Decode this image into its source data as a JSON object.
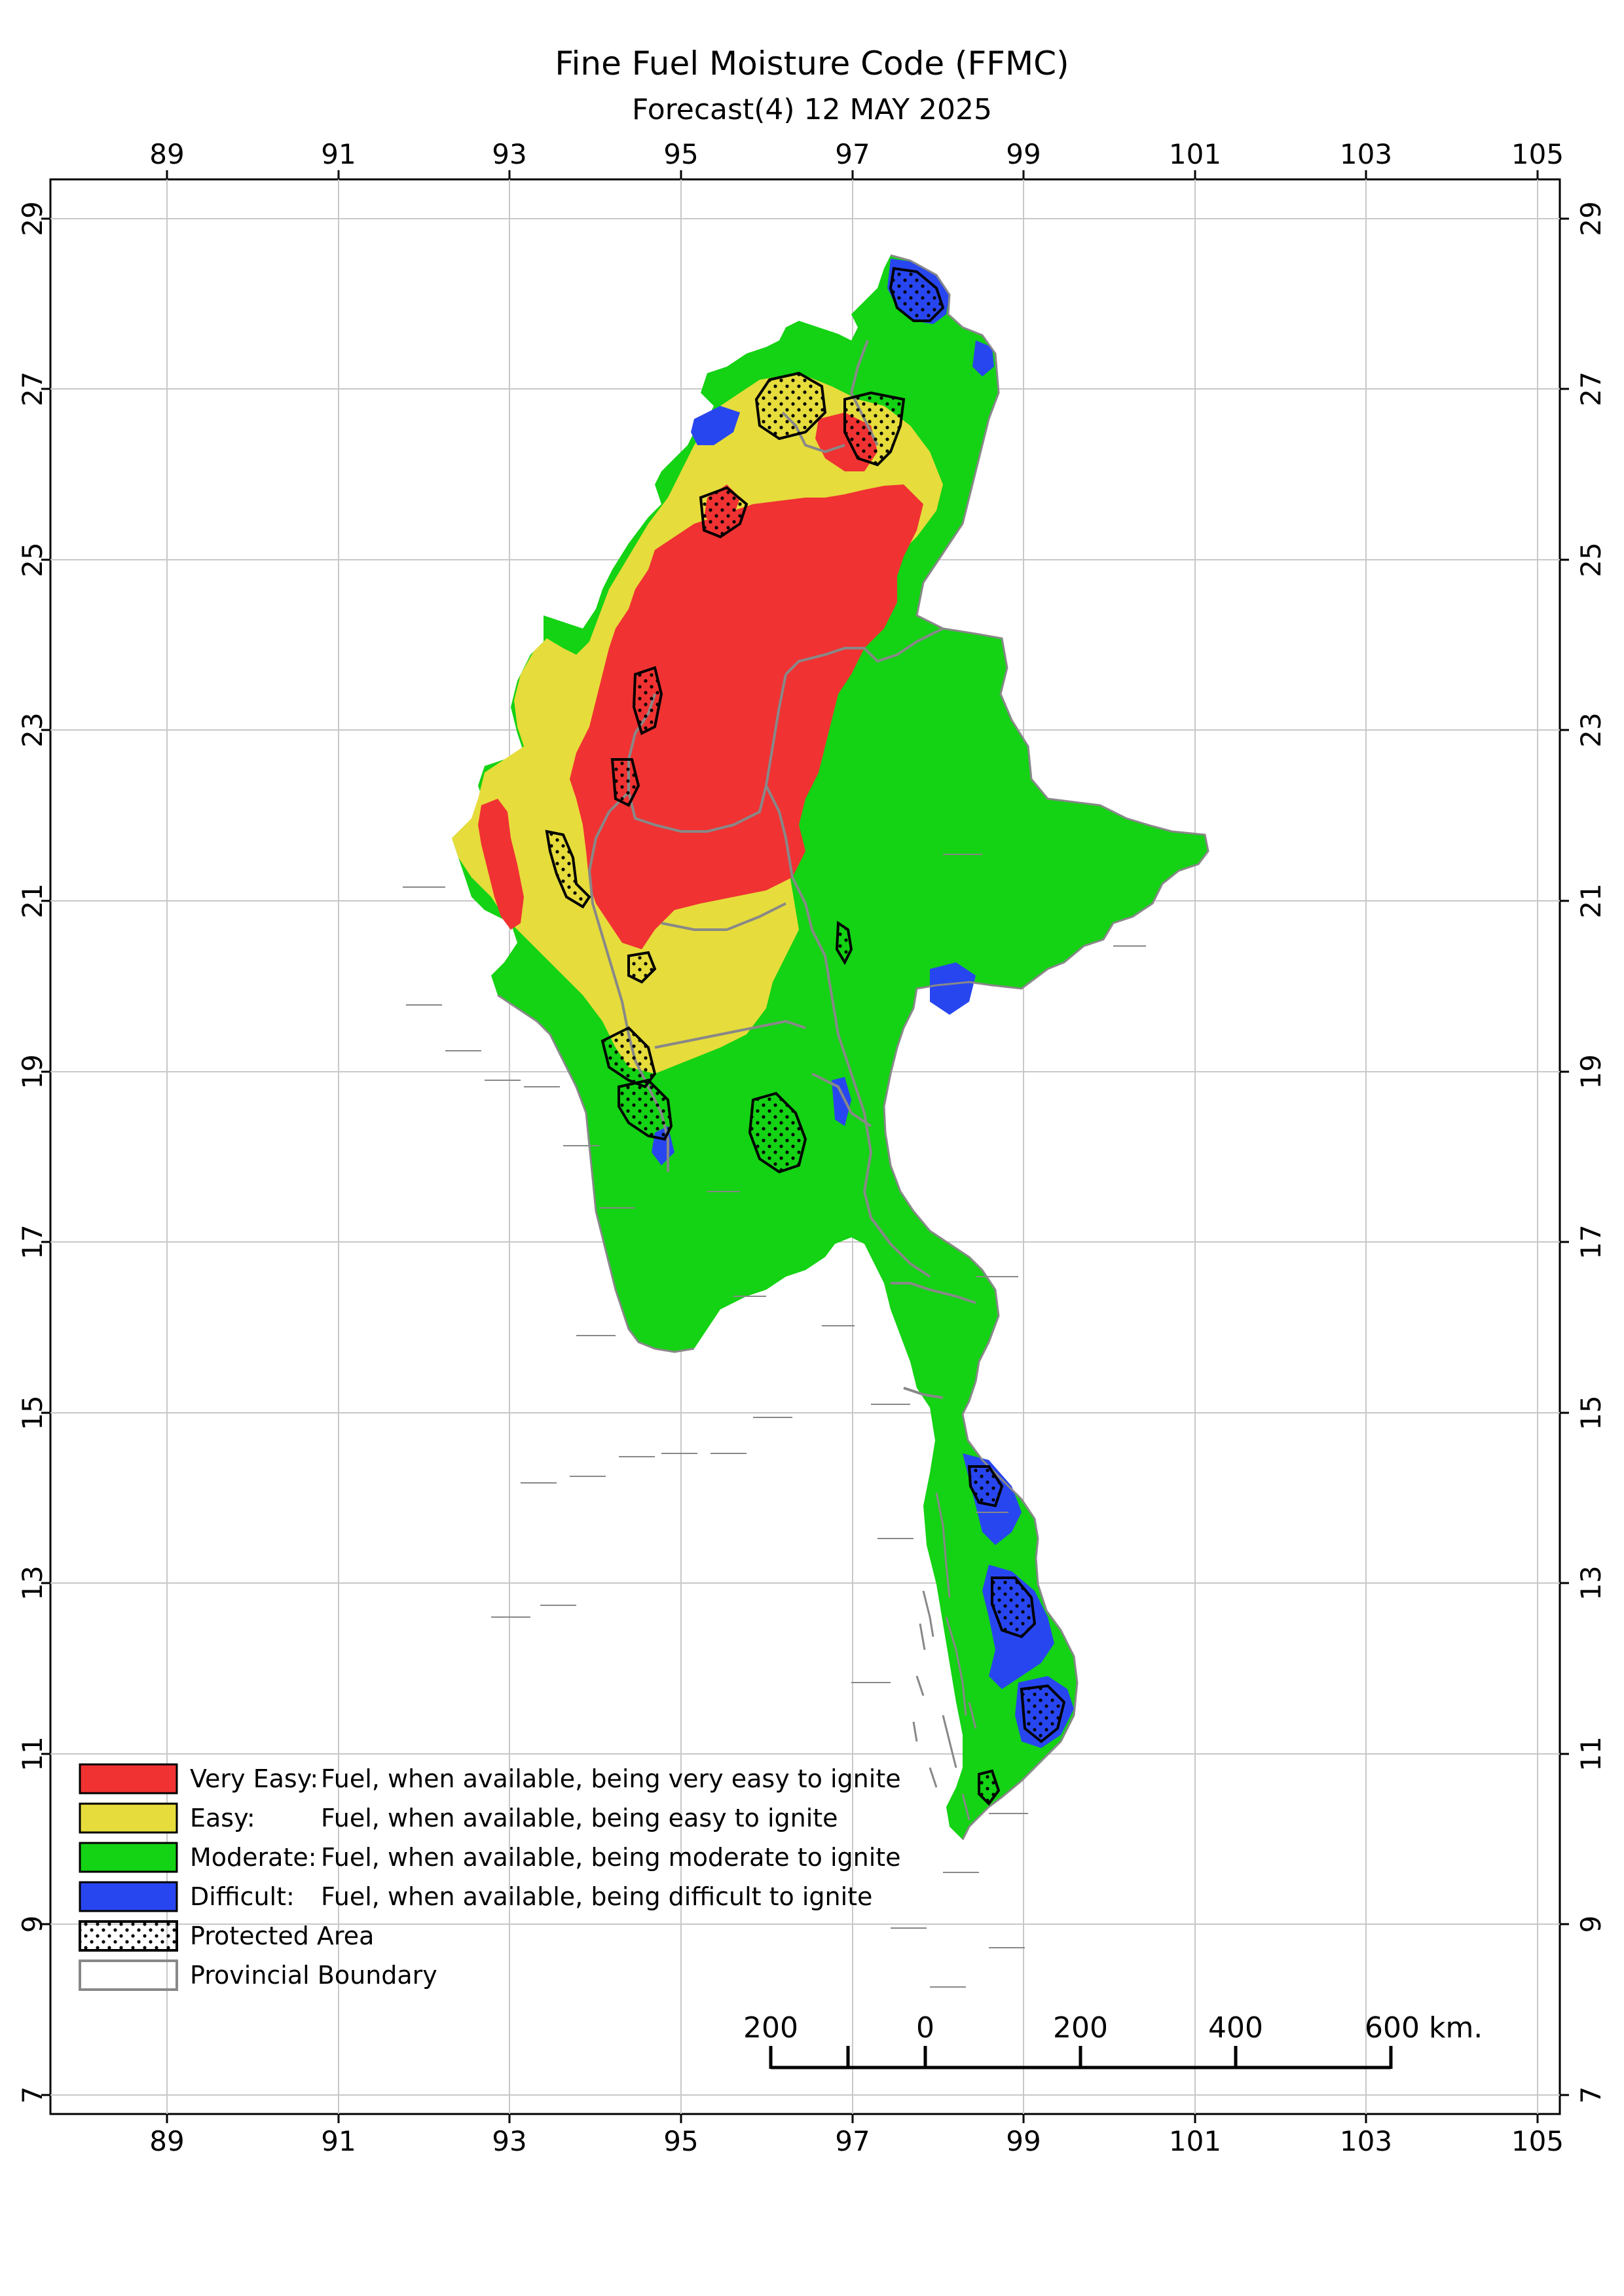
{
  "title": "Fine Fuel Moisture Code (FFMC)",
  "subtitle": "Forecast(4) 12 MAY 2025",
  "axes": {
    "lon_ticks": [
      "89",
      "91",
      "93",
      "95",
      "97",
      "99",
      "101",
      "103",
      "105"
    ],
    "lat_ticks": [
      "29",
      "27",
      "25",
      "23",
      "21",
      "19",
      "17",
      "15",
      "13",
      "11",
      "9",
      "7"
    ]
  },
  "legend": {
    "items": [
      {
        "label": "Very Easy:",
        "desc": "Fuel, when available, being very easy to ignite",
        "color": "#f03232"
      },
      {
        "label": "Easy:",
        "desc": "Fuel, when available, being easy to ignite",
        "color": "#e6dc3c"
      },
      {
        "label": "Moderate:",
        "desc": "Fuel, when available, being moderate to ignite",
        "color": "#14d214"
      },
      {
        "label": "Difficult:",
        "desc": "Fuel, when available, being difficult to ignite",
        "color": "#2846f0"
      },
      {
        "label": "Protected Area",
        "desc": "",
        "color": "pattern"
      },
      {
        "label": "Provincial Boundary",
        "desc": "",
        "color": "#888888"
      }
    ]
  },
  "scale_bar": {
    "labels": [
      "200",
      "0",
      "200",
      "400",
      "600 km."
    ]
  },
  "colors": {
    "very_easy": "#f03232",
    "easy": "#e6dc3c",
    "moderate": "#14d214",
    "difficult": "#2846f0",
    "boundary": "#888888",
    "grid": "#c8c8c8"
  }
}
